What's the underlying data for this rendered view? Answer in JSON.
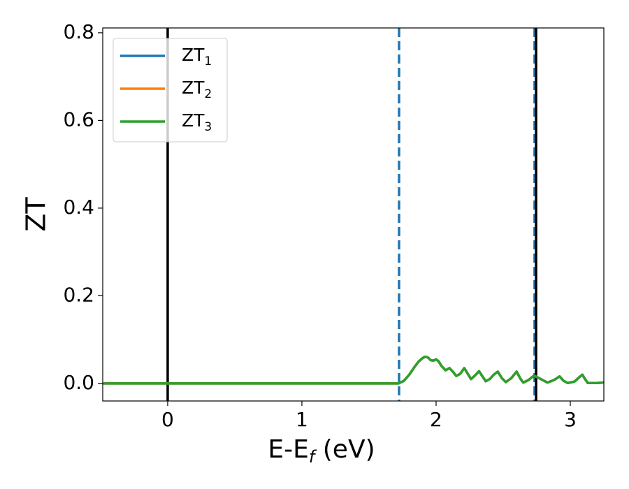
{
  "chart_data": {
    "type": "line",
    "xlabel": [
      "E-E",
      "f",
      " (eV)"
    ],
    "ylabel": "ZT",
    "x": [
      -0.48,
      1.72,
      1.76,
      1.8,
      1.84,
      1.87,
      1.9,
      1.92,
      1.94,
      1.96,
      1.98,
      2.0,
      2.02,
      2.04,
      2.07,
      2.1,
      2.13,
      2.15,
      2.18,
      2.21,
      2.24,
      2.26,
      2.29,
      2.32,
      2.35,
      2.37,
      2.4,
      2.43,
      2.46,
      2.49,
      2.52,
      2.56,
      2.6,
      2.63,
      2.65,
      2.69,
      2.73,
      2.78,
      2.83,
      2.88,
      2.92,
      2.95,
      2.98,
      3.03,
      3.07,
      3.09,
      3.11,
      3.13,
      3.2,
      3.25
    ],
    "series": [
      {
        "name": "ZT",
        "sub": "1",
        "color": "#1f77b4",
        "values": [
          0,
          0,
          0.006,
          0.02,
          0.038,
          0.05,
          0.058,
          0.061,
          0.059,
          0.053,
          0.052,
          0.055,
          0.05,
          0.04,
          0.03,
          0.035,
          0.025,
          0.017,
          0.022,
          0.035,
          0.02,
          0.01,
          0.018,
          0.028,
          0.014,
          0.005,
          0.01,
          0.02,
          0.027,
          0.012,
          0.003,
          0.012,
          0.027,
          0.01,
          0.002,
          0.008,
          0.018,
          0.01,
          0.002,
          0.008,
          0.016,
          0.006,
          0.001,
          0.004,
          0.015,
          0.02,
          0.01,
          0.001,
          0.001,
          0.002
        ]
      },
      {
        "name": "ZT",
        "sub": "2",
        "color": "#ff7f0e",
        "values": [
          0,
          0,
          0.006,
          0.02,
          0.038,
          0.05,
          0.058,
          0.061,
          0.059,
          0.053,
          0.052,
          0.055,
          0.05,
          0.04,
          0.03,
          0.035,
          0.025,
          0.017,
          0.022,
          0.035,
          0.02,
          0.01,
          0.018,
          0.028,
          0.014,
          0.005,
          0.01,
          0.02,
          0.027,
          0.012,
          0.003,
          0.012,
          0.027,
          0.01,
          0.002,
          0.008,
          0.018,
          0.01,
          0.002,
          0.008,
          0.016,
          0.006,
          0.001,
          0.004,
          0.015,
          0.02,
          0.01,
          0.001,
          0.001,
          0.002
        ]
      },
      {
        "name": "ZT",
        "sub": "3",
        "color": "#2ca02c",
        "values": [
          0,
          0,
          0.006,
          0.02,
          0.038,
          0.05,
          0.058,
          0.061,
          0.059,
          0.053,
          0.052,
          0.055,
          0.05,
          0.04,
          0.03,
          0.035,
          0.025,
          0.017,
          0.022,
          0.035,
          0.02,
          0.01,
          0.018,
          0.028,
          0.014,
          0.005,
          0.01,
          0.02,
          0.027,
          0.012,
          0.003,
          0.012,
          0.027,
          0.01,
          0.002,
          0.008,
          0.018,
          0.01,
          0.002,
          0.008,
          0.016,
          0.006,
          0.001,
          0.004,
          0.015,
          0.02,
          0.01,
          0.001,
          0.001,
          0.002
        ]
      }
    ],
    "vlines": [
      {
        "x": 0,
        "color": "#000000",
        "style": "solid"
      },
      {
        "x": 1.724,
        "color": "#1f77b4",
        "style": "dashed"
      },
      {
        "x": 2.734,
        "color": "#1f77b4",
        "style": "dashed"
      },
      {
        "x": 2.745,
        "color": "#000000",
        "style": "solid"
      }
    ],
    "xlim": [
      -0.484,
      3.25
    ],
    "ylim": [
      -0.04,
      0.811
    ],
    "xticks": [
      0,
      1,
      2,
      3
    ],
    "yticks": [
      {
        "value": 0,
        "label": "0.0"
      },
      {
        "value": 0.2,
        "label": "0.2"
      },
      {
        "value": 0.4,
        "label": "0.4"
      },
      {
        "value": 0.6,
        "label": "0.6"
      },
      {
        "value": 0.8,
        "label": "0.8"
      }
    ],
    "legend": "upper left"
  }
}
